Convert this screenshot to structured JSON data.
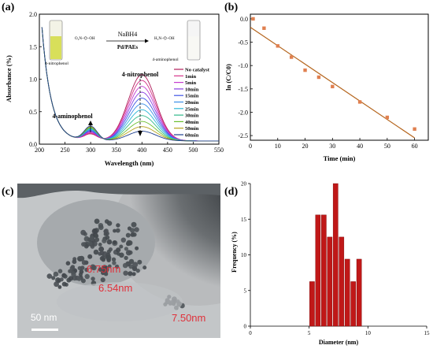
{
  "panels": {
    "a": "(a)",
    "b": "(b)",
    "c": "(c)",
    "d": "(d)"
  },
  "chart_data": [
    {
      "panel": "a",
      "type": "line",
      "xlabel": "Wavelength (nm)",
      "ylabel": "Absorbance (%)",
      "xlim": [
        200,
        550
      ],
      "ylim": [
        0,
        2.0
      ],
      "xticks": [
        "200",
        "250",
        "300",
        "350",
        "400",
        "450",
        "500",
        "550"
      ],
      "yticks": [
        "0.0",
        "0.5",
        "1.0",
        "1.5",
        "2.0"
      ],
      "legend_position": "right",
      "annotations": {
        "peak_400": "4-nitrophenol",
        "peak_300": "4-aminophenol"
      },
      "inset": {
        "left_label": "4-nitrophenol",
        "right_label": "4-aminophenol",
        "reagent": "NaBH4",
        "catalyst": "Pd/PAEs"
      },
      "series": [
        {
          "name": "No catalyst",
          "color": "#b01c5a",
          "peak": 1.02
        },
        {
          "name": "1min",
          "color": "#d6338a",
          "peak": 0.93
        },
        {
          "name": "5min",
          "color": "#c43bd0",
          "peak": 0.84
        },
        {
          "name": "10min",
          "color": "#8a3ee0",
          "peak": 0.75
        },
        {
          "name": "15min",
          "color": "#3f55e6",
          "peak": 0.66
        },
        {
          "name": "20min",
          "color": "#3a8de8",
          "peak": 0.57
        },
        {
          "name": "25min",
          "color": "#31b8d8",
          "peak": 0.48
        },
        {
          "name": "30min",
          "color": "#2fb88a",
          "peak": 0.39
        },
        {
          "name": "40min",
          "color": "#6cbf2f",
          "peak": 0.3
        },
        {
          "name": "50min",
          "color": "#b6a21c",
          "peak": 0.22
        },
        {
          "name": "60min",
          "color": "#1e3f8f",
          "peak": 0.15
        }
      ]
    },
    {
      "panel": "b",
      "type": "scatter",
      "xlabel": "Time (min)",
      "ylabel": "ln (C/C0)",
      "xlim": [
        0,
        65
      ],
      "ylim": [
        -2.6,
        0.1
      ],
      "xticks": [
        "0",
        "10",
        "20",
        "30",
        "40",
        "50",
        "60"
      ],
      "yticks": [
        "0.0",
        "-0.5",
        "-1.0",
        "-1.5",
        "-2.0",
        "-2.5"
      ],
      "points": [
        [
          1,
          0.0
        ],
        [
          5,
          -0.2
        ],
        [
          10,
          -0.58
        ],
        [
          15,
          -0.82
        ],
        [
          20,
          -1.1
        ],
        [
          25,
          -1.25
        ],
        [
          30,
          -1.45
        ],
        [
          40,
          -1.78
        ],
        [
          50,
          -2.11
        ],
        [
          60,
          -2.36
        ]
      ],
      "fit": [
        [
          0,
          -0.18
        ],
        [
          60,
          -2.55
        ]
      ],
      "point_color": "#e08050",
      "line_color": "#b5651d"
    },
    {
      "panel": "d",
      "type": "bar",
      "xlabel": "Diameter (nm)",
      "ylabel": "Frequency (%)",
      "xlim": [
        0,
        15
      ],
      "ylim": [
        0,
        20
      ],
      "xticks": [
        "0",
        "5",
        "10",
        "15"
      ],
      "yticks": [
        "0",
        "5",
        "10",
        "15",
        "20"
      ],
      "bin_width": 0.5,
      "x": [
        5.0,
        5.5,
        6.0,
        6.5,
        7.0,
        7.5,
        8.0,
        8.5,
        9.0
      ],
      "values": [
        6.25,
        15.6,
        15.6,
        12.5,
        20.0,
        12.5,
        9.4,
        6.25,
        9.4
      ],
      "bar_color": "#c01818"
    }
  ],
  "tem": {
    "measurements": [
      "6.75nm",
      "6.54nm",
      "7.50nm"
    ],
    "scale_bar": "50 nm"
  }
}
